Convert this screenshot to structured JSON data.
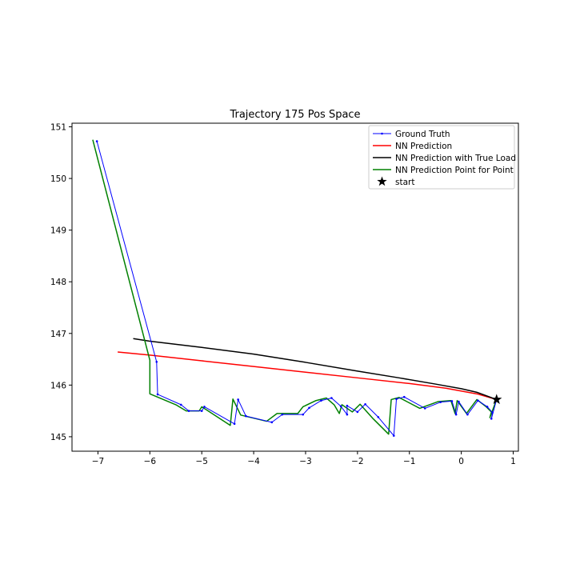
{
  "chart_data": {
    "type": "line",
    "title": "Trajectory 175 Pos Space",
    "xlabel": "",
    "ylabel": "",
    "xlim": [
      -7.5,
      1.1
    ],
    "ylim": [
      144.72,
      151.07
    ],
    "xticks": [
      -7,
      -6,
      -5,
      -4,
      -3,
      -2,
      -1,
      0,
      1
    ],
    "yticks": [
      145,
      146,
      147,
      148,
      149,
      150,
      151
    ],
    "xtick_labels": [
      "−7",
      "−6",
      "−5",
      "−4",
      "−3",
      "−2",
      "−1",
      "0",
      "1"
    ],
    "ytick_labels": [
      "145",
      "146",
      "147",
      "148",
      "149",
      "150",
      "151"
    ],
    "grid": false,
    "legend_position": "top-right",
    "series": [
      {
        "name": "Ground Truth",
        "color": "#0000ff",
        "marker": "dot",
        "points": [
          [
            0.68,
            145.72
          ],
          [
            0.58,
            145.35
          ],
          [
            0.6,
            145.47
          ],
          [
            0.5,
            145.58
          ],
          [
            0.32,
            145.7
          ],
          [
            0.12,
            145.43
          ],
          [
            -0.05,
            145.68
          ],
          [
            -0.1,
            145.43
          ],
          [
            -0.18,
            145.69
          ],
          [
            -0.4,
            145.67
          ],
          [
            -0.7,
            145.55
          ],
          [
            -1.1,
            145.77
          ],
          [
            -1.25,
            145.73
          ],
          [
            -1.3,
            145.02
          ],
          [
            -1.6,
            145.38
          ],
          [
            -1.85,
            145.63
          ],
          [
            -2.0,
            145.48
          ],
          [
            -2.2,
            145.6
          ],
          [
            -2.2,
            145.43
          ],
          [
            -2.32,
            145.59
          ],
          [
            -2.5,
            145.75
          ],
          [
            -2.7,
            145.7
          ],
          [
            -2.93,
            145.56
          ],
          [
            -3.05,
            145.43
          ],
          [
            -3.45,
            145.43
          ],
          [
            -3.65,
            145.28
          ],
          [
            -4.15,
            145.4
          ],
          [
            -4.3,
            145.72
          ],
          [
            -4.37,
            145.25
          ],
          [
            -4.95,
            145.58
          ],
          [
            -5.0,
            145.5
          ],
          [
            -5.25,
            145.5
          ],
          [
            -5.4,
            145.62
          ],
          [
            -5.85,
            145.82
          ],
          [
            -5.87,
            146.45
          ],
          [
            -7.02,
            150.72
          ]
        ]
      },
      {
        "name": "NN Prediction",
        "color": "#ff0000",
        "points": [
          [
            0.68,
            145.72
          ],
          [
            0.3,
            145.83
          ],
          [
            -0.3,
            145.94
          ],
          [
            -1.0,
            146.03
          ],
          [
            -2.0,
            146.14
          ],
          [
            -3.0,
            146.25
          ],
          [
            -4.0,
            146.36
          ],
          [
            -5.0,
            146.47
          ],
          [
            -6.0,
            146.58
          ],
          [
            -6.62,
            146.64
          ]
        ]
      },
      {
        "name": "NN Prediction with True Load",
        "color": "#000000",
        "points": [
          [
            0.68,
            145.72
          ],
          [
            0.3,
            145.86
          ],
          [
            0.0,
            145.93
          ],
          [
            -0.5,
            146.02
          ],
          [
            -1.2,
            146.14
          ],
          [
            -2.0,
            146.27
          ],
          [
            -3.0,
            146.44
          ],
          [
            -4.0,
            146.6
          ],
          [
            -5.0,
            146.73
          ],
          [
            -6.0,
            146.85
          ],
          [
            -6.32,
            146.9
          ]
        ]
      },
      {
        "name": "NN Prediction Point for Point",
        "color": "#008000",
        "points": [
          [
            0.68,
            145.72
          ],
          [
            0.55,
            145.37
          ],
          [
            0.58,
            145.48
          ],
          [
            0.48,
            145.58
          ],
          [
            0.3,
            145.72
          ],
          [
            0.1,
            145.45
          ],
          [
            -0.08,
            145.7
          ],
          [
            -0.12,
            145.45
          ],
          [
            -0.2,
            145.7
          ],
          [
            -0.45,
            145.68
          ],
          [
            -0.8,
            145.55
          ],
          [
            -1.2,
            145.76
          ],
          [
            -1.35,
            145.72
          ],
          [
            -1.4,
            145.05
          ],
          [
            -1.7,
            145.35
          ],
          [
            -1.95,
            145.63
          ],
          [
            -2.1,
            145.48
          ],
          [
            -2.3,
            145.62
          ],
          [
            -2.35,
            145.45
          ],
          [
            -2.45,
            145.62
          ],
          [
            -2.6,
            145.75
          ],
          [
            -2.8,
            145.7
          ],
          [
            -3.05,
            145.58
          ],
          [
            -3.15,
            145.45
          ],
          [
            -3.55,
            145.45
          ],
          [
            -3.75,
            145.3
          ],
          [
            -4.25,
            145.42
          ],
          [
            -4.4,
            145.73
          ],
          [
            -4.45,
            145.22
          ],
          [
            -5.0,
            145.58
          ],
          [
            -5.05,
            145.5
          ],
          [
            -5.3,
            145.5
          ],
          [
            -5.5,
            145.62
          ],
          [
            -6.0,
            145.83
          ],
          [
            -6.0,
            146.48
          ],
          [
            -7.1,
            150.75
          ]
        ]
      }
    ],
    "start": {
      "name": "start",
      "color": "#000000",
      "marker": "star",
      "point": [
        0.68,
        145.72
      ]
    }
  }
}
